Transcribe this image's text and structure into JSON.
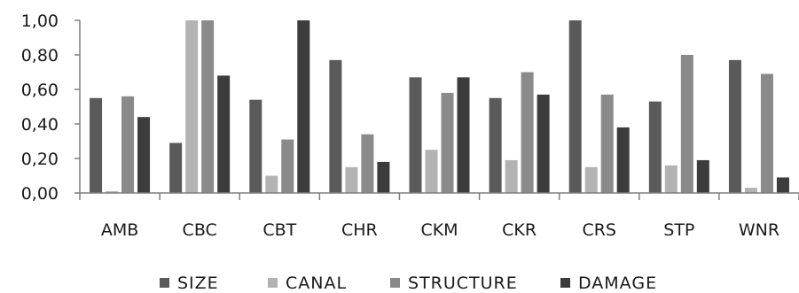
{
  "chart_data": {
    "type": "bar",
    "categories": [
      "AMB",
      "CBC",
      "CBT",
      "CHR",
      "CKM",
      "CKR",
      "CRS",
      "STP",
      "WNR"
    ],
    "series": [
      {
        "name": "SIZE",
        "color": "#5a5a5a",
        "values": [
          0.55,
          0.29,
          0.54,
          0.77,
          0.67,
          0.55,
          1.0,
          0.53,
          0.77
        ]
      },
      {
        "name": "CANAL",
        "color": "#b3b3b3",
        "values": [
          0.01,
          1.0,
          0.1,
          0.15,
          0.25,
          0.19,
          0.15,
          0.16,
          0.03
        ]
      },
      {
        "name": "STRUCTURE",
        "color": "#8a8a8a",
        "values": [
          0.56,
          1.0,
          0.31,
          0.34,
          0.58,
          0.7,
          0.57,
          0.8,
          0.69
        ]
      },
      {
        "name": "DAMAGE",
        "color": "#3c3c3c",
        "values": [
          0.44,
          0.68,
          1.0,
          0.18,
          0.67,
          0.57,
          0.38,
          0.19,
          0.09
        ]
      }
    ],
    "ylim": [
      0,
      1
    ],
    "yticks": [
      "0,00",
      "0,20",
      "0,40",
      "0,60",
      "0,80",
      "1,00"
    ],
    "ytick_values": [
      0,
      0.2,
      0.4,
      0.6,
      0.8,
      1.0
    ],
    "grid": false,
    "legend_position": "bottom"
  }
}
